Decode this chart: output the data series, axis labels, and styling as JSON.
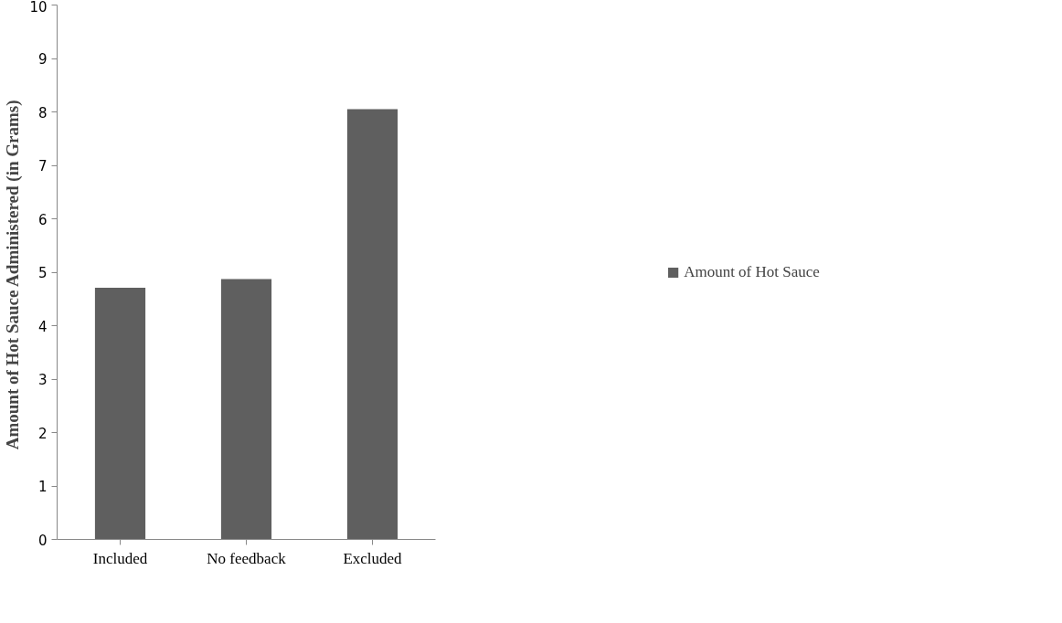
{
  "chart_data": {
    "type": "bar",
    "ylabel": "Amount of Hot Sauce Administered  (in Grams)",
    "categories": [
      "Included",
      "No feedback",
      "Excluded"
    ],
    "series": [
      {
        "name": "Amount of Hot Sauce",
        "color": "#5f5f5f",
        "values": [
          4.71,
          4.87,
          8.05
        ]
      }
    ],
    "ylim": [
      0,
      10
    ],
    "yticks": [
      0,
      1,
      2,
      3,
      4,
      5,
      6,
      7,
      8,
      9,
      10
    ],
    "grid": false,
    "legend": "right"
  }
}
